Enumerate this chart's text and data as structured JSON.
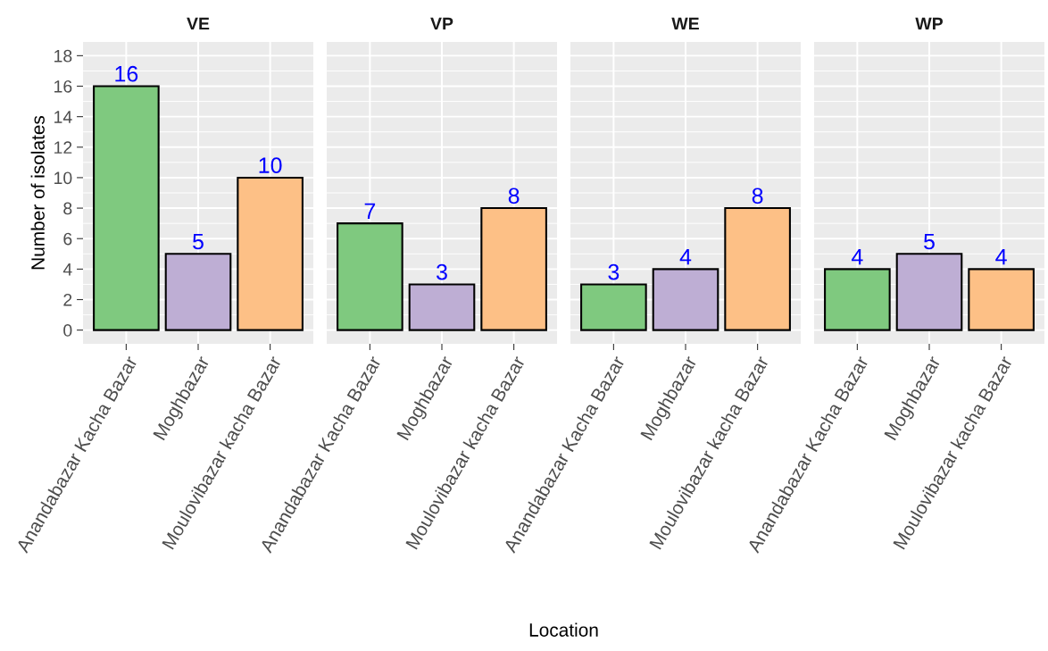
{
  "chart_data": [
    {
      "type": "bar",
      "title": "VE",
      "annotations": [
        "Location"
      ],
      "ylabel": "Number of isolates",
      "categories": [
        "Anandabazar Kacha Bazar",
        "Moghbazar",
        "Moulovibazar kacha Bazar"
      ],
      "values": [
        16,
        5,
        10
      ],
      "colors": [
        "#7fc97f",
        "#beaed4",
        "#fdc086"
      ],
      "ylim": [
        -0.9,
        18.9
      ],
      "yticks": [
        0,
        2,
        4,
        6,
        8,
        10,
        12,
        14,
        16,
        18
      ],
      "grid": true,
      "data_labels": true
    },
    {
      "type": "bar",
      "title": "VP",
      "categories": [
        "Anandabazar Kacha Bazar",
        "Moghbazar",
        "Moulovibazar kacha Bazar"
      ],
      "values": [
        7,
        3,
        8
      ],
      "colors": [
        "#7fc97f",
        "#beaed4",
        "#fdc086"
      ],
      "ylim": [
        -0.9,
        18.9
      ],
      "yticks": [
        0,
        2,
        4,
        6,
        8,
        10,
        12,
        14,
        16,
        18
      ],
      "grid": true,
      "data_labels": true,
      "tick_labels": "x"
    },
    {
      "type": "bar",
      "title": "WE",
      "categories": [
        "Anandabazar Kacha Bazar",
        "Moghbazar",
        "Moulovibazar kacha Bazar"
      ],
      "values": [
        3,
        4,
        8
      ],
      "colors": [
        "#7fc97f",
        "#beaed4",
        "#fdc086"
      ],
      "ylim": [
        -0.9,
        18.9
      ],
      "yticks": [
        0,
        2,
        4,
        6,
        8,
        10,
        12,
        14,
        16,
        18
      ],
      "grid": true,
      "data_labels": true,
      "tick_labels": "x"
    },
    {
      "type": "bar",
      "title": "WP",
      "categories": [
        "Anandabazar Kacha Bazar",
        "Moghbazar",
        "Moulovibazar kacha Bazar"
      ],
      "values": [
        4,
        5,
        4
      ],
      "colors": [
        "#7fc97f",
        "#beaed4",
        "#fdc086"
      ],
      "ylim": [
        -0.9,
        18.9
      ],
      "yticks": [
        0,
        2,
        4,
        6,
        8,
        10,
        12,
        14,
        16,
        18
      ],
      "grid": true,
      "data_labels": true,
      "tick_labels": "x"
    }
  ]
}
